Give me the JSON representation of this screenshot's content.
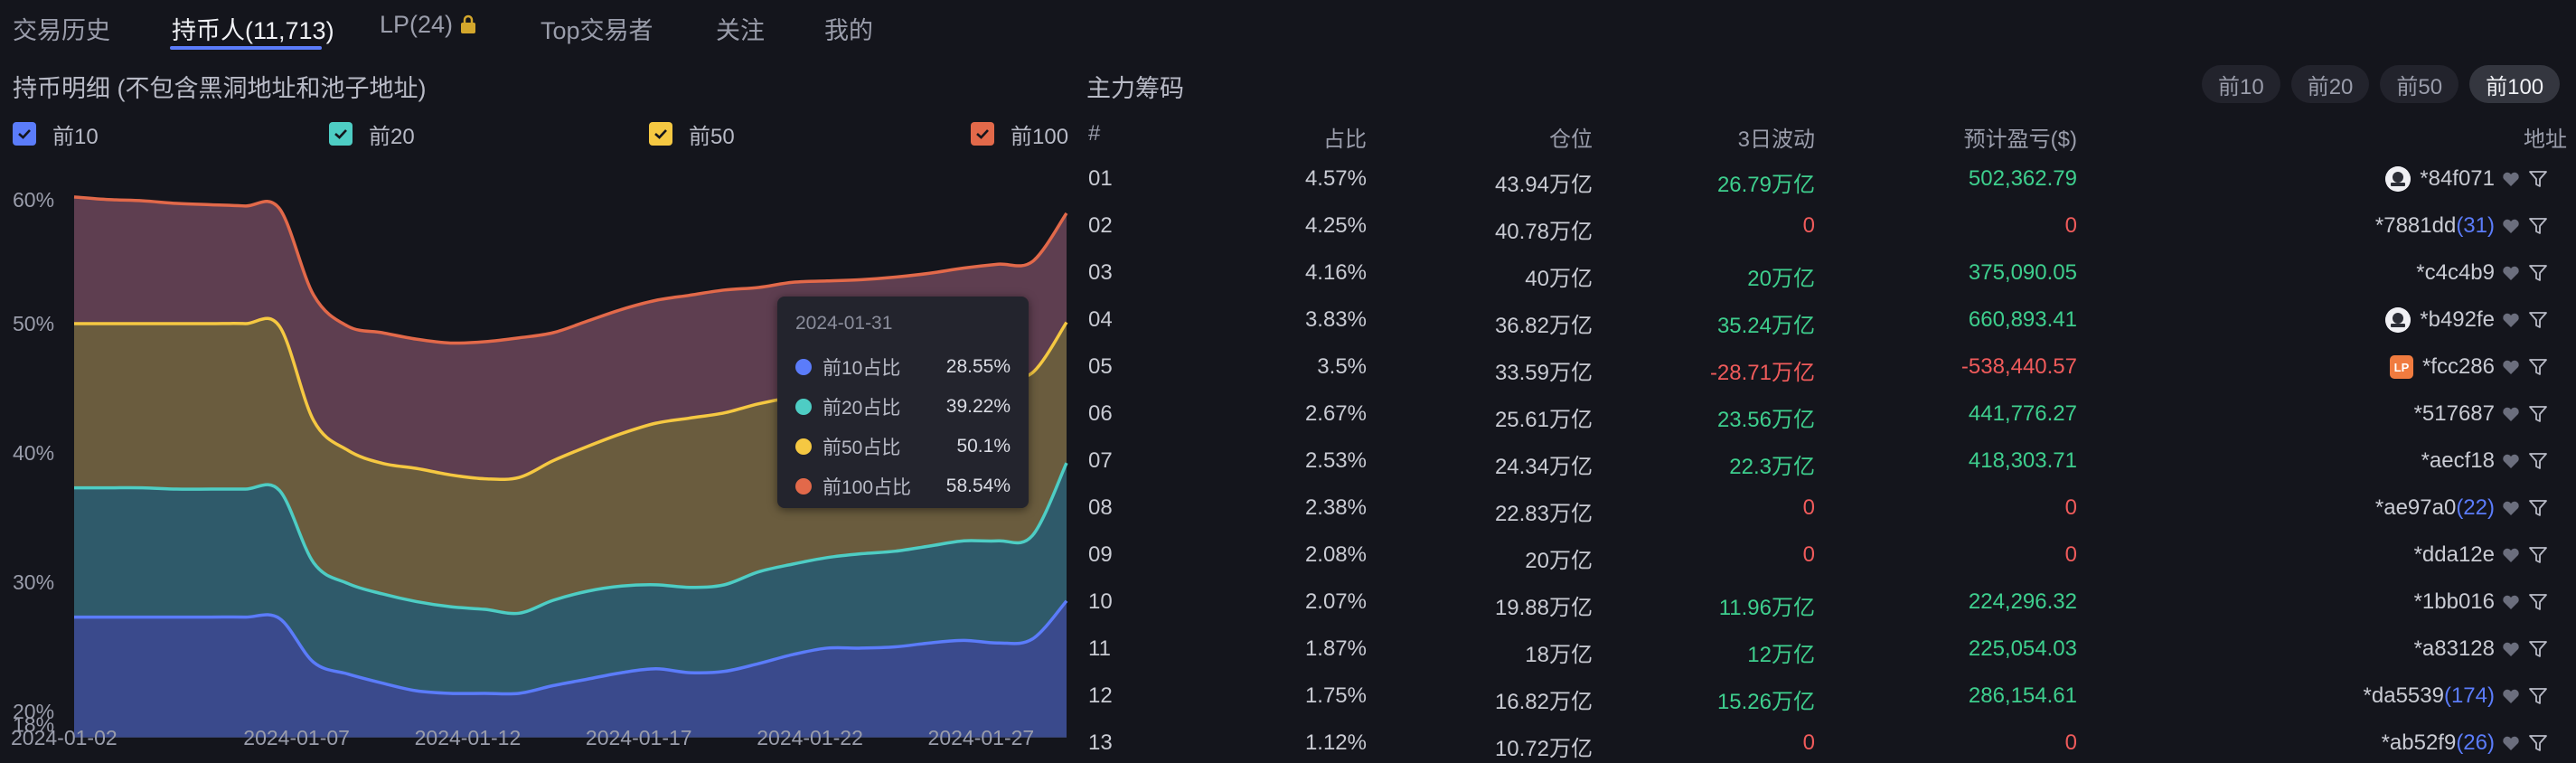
{
  "tabs": [
    {
      "label": "交易历史"
    },
    {
      "label": "持币人(11,713)"
    },
    {
      "label": "LP(24)"
    },
    {
      "label": "Top交易者"
    },
    {
      "label": "关注"
    },
    {
      "label": "我的"
    }
  ],
  "left": {
    "title": "持币明细 (不包含黑洞地址和池子地址)",
    "legend": [
      {
        "label": "前10",
        "color": "#5b7cfa"
      },
      {
        "label": "前20",
        "color": "#4ecdc4"
      },
      {
        "label": "前50",
        "color": "#f5c842"
      },
      {
        "label": "前100",
        "color": "#e2694a"
      }
    ]
  },
  "tooltip": {
    "date": "2024-01-31",
    "rows": [
      {
        "label": "前10占比",
        "value": "28.55%",
        "color": "#5b7cfa"
      },
      {
        "label": "前20占比",
        "value": "39.22%",
        "color": "#4ecdc4"
      },
      {
        "label": "前50占比",
        "value": "50.1%",
        "color": "#f5c842"
      },
      {
        "label": "前100占比",
        "value": "58.54%",
        "color": "#e2694a"
      }
    ]
  },
  "chart_data": {
    "type": "area",
    "y_ticks": [
      "60%",
      "50%",
      "40%",
      "30%",
      "20%",
      "18%"
    ],
    "ylim": [
      18,
      60
    ],
    "x_ticks": [
      "2024-01-02",
      "2024-01-07",
      "2024-01-12",
      "2024-01-17",
      "2024-01-22",
      "2024-01-27"
    ],
    "x": [
      "2024-01-02",
      "2024-01-03",
      "2024-01-04",
      "2024-01-05",
      "2024-01-06",
      "2024-01-07",
      "2024-01-08",
      "2024-01-09",
      "2024-01-10",
      "2024-01-11",
      "2024-01-12",
      "2024-01-13",
      "2024-01-14",
      "2024-01-15",
      "2024-01-16",
      "2024-01-17",
      "2024-01-18",
      "2024-01-19",
      "2024-01-20",
      "2024-01-21",
      "2024-01-22",
      "2024-01-23",
      "2024-01-24",
      "2024-01-25",
      "2024-01-26",
      "2024-01-27",
      "2024-01-28",
      "2024-01-29",
      "2024-01-30",
      "2024-01-31"
    ],
    "series": [
      {
        "name": "前10",
        "color": "#5b7cfa",
        "values": [
          27.3,
          27.3,
          27.3,
          27.3,
          27.3,
          27.3,
          27.2,
          23.8,
          22.9,
          22.2,
          21.6,
          21.4,
          21.4,
          21.4,
          22.0,
          22.5,
          23.0,
          23.3,
          23.0,
          23.1,
          23.7,
          24.4,
          24.9,
          24.9,
          25.0,
          25.3,
          25.5,
          25.3,
          25.6,
          28.55
        ]
      },
      {
        "name": "前20",
        "color": "#4ecdc4",
        "values": [
          37.3,
          37.3,
          37.3,
          37.2,
          37.2,
          37.2,
          37.1,
          31.5,
          29.9,
          29.1,
          28.5,
          28.1,
          27.9,
          27.6,
          28.6,
          29.3,
          29.7,
          29.8,
          29.6,
          29.8,
          30.8,
          31.4,
          31.9,
          32.2,
          32.4,
          32.8,
          33.2,
          33.2,
          33.6,
          39.22
        ]
      },
      {
        "name": "前50",
        "color": "#f5c842",
        "values": [
          50.0,
          50.0,
          50.0,
          50.0,
          50.0,
          50.0,
          49.8,
          42.5,
          40.2,
          39.2,
          38.8,
          38.3,
          38.0,
          38.1,
          39.4,
          40.5,
          41.5,
          42.3,
          42.7,
          43.1,
          43.8,
          44.3,
          44.6,
          44.9,
          45.2,
          45.4,
          45.6,
          45.9,
          46.2,
          50.1
        ]
      },
      {
        "name": "前100",
        "color": "#e2694a",
        "values": [
          59.8,
          59.6,
          59.5,
          59.3,
          59.2,
          59.1,
          58.9,
          52.2,
          49.8,
          49.3,
          48.8,
          48.5,
          48.6,
          48.9,
          49.3,
          50.2,
          51.1,
          51.8,
          52.2,
          52.6,
          52.8,
          53.2,
          53.3,
          53.4,
          53.6,
          53.9,
          54.3,
          54.6,
          54.8,
          58.54
        ]
      }
    ]
  },
  "right": {
    "title": "主力筹码",
    "range_buttons": [
      {
        "label": "前10",
        "active": false
      },
      {
        "label": "前20",
        "active": false
      },
      {
        "label": "前50",
        "active": false
      },
      {
        "label": "前100",
        "active": true
      }
    ],
    "columns": [
      "#",
      "占比",
      "仓位",
      "3日波动",
      "预计盈亏($)",
      "地址"
    ],
    "rows": [
      {
        "idx": "01",
        "pct": "4.57%",
        "pos": "43.94万亿",
        "vol": "26.79万亿",
        "vol_sign": "pos",
        "pnl": "502,362.79",
        "pnl_sign": "pos",
        "addr": "*84f071",
        "count": "",
        "badge": "avatar"
      },
      {
        "idx": "02",
        "pct": "4.25%",
        "pos": "40.78万亿",
        "vol": "0",
        "vol_sign": "neg",
        "pnl": "0",
        "pnl_sign": "neg",
        "addr": "*7881dd",
        "count": "(31)",
        "badge": ""
      },
      {
        "idx": "03",
        "pct": "4.16%",
        "pos": "40万亿",
        "vol": "20万亿",
        "vol_sign": "pos",
        "pnl": "375,090.05",
        "pnl_sign": "pos",
        "addr": "*c4c4b9",
        "count": "",
        "badge": ""
      },
      {
        "idx": "04",
        "pct": "3.83%",
        "pos": "36.82万亿",
        "vol": "35.24万亿",
        "vol_sign": "pos",
        "pnl": "660,893.41",
        "pnl_sign": "pos",
        "addr": "*b492fe",
        "count": "",
        "badge": "avatar"
      },
      {
        "idx": "05",
        "pct": "3.5%",
        "pos": "33.59万亿",
        "vol": "-28.71万亿",
        "vol_sign": "neg",
        "pnl": "-538,440.57",
        "pnl_sign": "neg",
        "addr": "*fcc286",
        "count": "",
        "badge": "lp"
      },
      {
        "idx": "06",
        "pct": "2.67%",
        "pos": "25.61万亿",
        "vol": "23.56万亿",
        "vol_sign": "pos",
        "pnl": "441,776.27",
        "pnl_sign": "pos",
        "addr": "*517687",
        "count": "",
        "badge": ""
      },
      {
        "idx": "07",
        "pct": "2.53%",
        "pos": "24.34万亿",
        "vol": "22.3万亿",
        "vol_sign": "pos",
        "pnl": "418,303.71",
        "pnl_sign": "pos",
        "addr": "*aecf18",
        "count": "",
        "badge": ""
      },
      {
        "idx": "08",
        "pct": "2.38%",
        "pos": "22.83万亿",
        "vol": "0",
        "vol_sign": "neg",
        "pnl": "0",
        "pnl_sign": "neg",
        "addr": "*ae97a0",
        "count": "(22)",
        "badge": ""
      },
      {
        "idx": "09",
        "pct": "2.08%",
        "pos": "20万亿",
        "vol": "0",
        "vol_sign": "neg",
        "pnl": "0",
        "pnl_sign": "neg",
        "addr": "*dda12e",
        "count": "",
        "badge": ""
      },
      {
        "idx": "10",
        "pct": "2.07%",
        "pos": "19.88万亿",
        "vol": "11.96万亿",
        "vol_sign": "pos",
        "pnl": "224,296.32",
        "pnl_sign": "pos",
        "addr": "*1bb016",
        "count": "",
        "badge": ""
      },
      {
        "idx": "11",
        "pct": "1.87%",
        "pos": "18万亿",
        "vol": "12万亿",
        "vol_sign": "pos",
        "pnl": "225,054.03",
        "pnl_sign": "pos",
        "addr": "*a83128",
        "count": "",
        "badge": ""
      },
      {
        "idx": "12",
        "pct": "1.75%",
        "pos": "16.82万亿",
        "vol": "15.26万亿",
        "vol_sign": "pos",
        "pnl": "286,154.61",
        "pnl_sign": "pos",
        "addr": "*da5539",
        "count": "(174)",
        "badge": ""
      },
      {
        "idx": "13",
        "pct": "1.12%",
        "pos": "10.72万亿",
        "vol": "0",
        "vol_sign": "neg",
        "pnl": "0",
        "pnl_sign": "neg",
        "addr": "*ab52f9",
        "count": "(26)",
        "badge": ""
      }
    ]
  }
}
